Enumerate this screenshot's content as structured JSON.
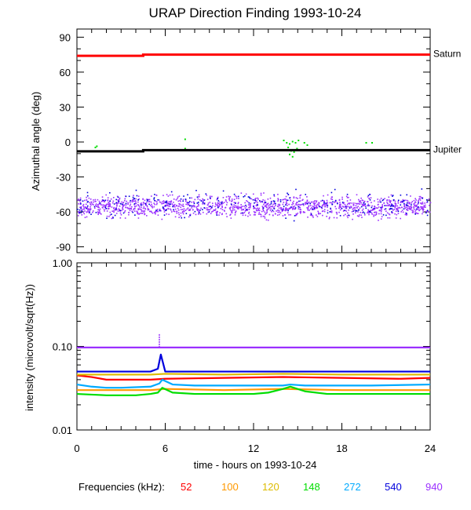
{
  "chart_data": [
    {
      "type": "scatter",
      "title": "URAP Direction Finding  1993-10-24",
      "ylabel": "Azimuthal angle (deg)",
      "xlim": [
        0,
        24
      ],
      "ylim": [
        -95,
        97
      ],
      "yticks": [
        90,
        60,
        30,
        0,
        -30,
        -60,
        -90
      ],
      "ytick_labels": [
        "90",
        "60",
        "30",
        "0",
        "-30",
        "-60",
        "-90"
      ],
      "reference_lines": [
        {
          "name": "Saturn",
          "color": "#ff0000",
          "x": [
            0,
            4.5,
            4.5,
            24
          ],
          "y": [
            74,
            74,
            75,
            75
          ]
        },
        {
          "name": "Jupiter",
          "color": "#000000",
          "x": [
            0,
            4.5,
            4.5,
            24
          ],
          "y": [
            -8,
            -8,
            -7,
            -7
          ]
        }
      ],
      "series": [
        {
          "color": "#9b30ff",
          "x_range": [
            0,
            24
          ],
          "y_center": -55,
          "y_spread": 10
        },
        {
          "color": "#0000dd",
          "x_range": [
            0,
            24
          ],
          "y_center": -53,
          "y_spread": 12
        },
        {
          "color": "#00dd00",
          "x": [
            1.2,
            1.3,
            7.3,
            7.3,
            14.0,
            14.2,
            14.4,
            14.6,
            14.8,
            15.0,
            14.3,
            14.5,
            14.7,
            14.9,
            14.4,
            14.6,
            15.4,
            15.6,
            19.6,
            20.0
          ],
          "y": [
            -4,
            -3,
            3,
            -5,
            2,
            0,
            -1,
            1,
            0,
            2,
            -4,
            -7,
            -8,
            -5,
            -10,
            -12,
            0,
            -2,
            0,
            0
          ]
        }
      ]
    },
    {
      "type": "line",
      "ylabel": "intensity (microvolt/sqrt(Hz))",
      "xlabel": "time - hours on 1993-10-24",
      "xlim": [
        0,
        24
      ],
      "xticks": [
        0,
        6,
        12,
        18,
        24
      ],
      "xtick_labels": [
        "0",
        "6",
        "12",
        "18",
        "24"
      ],
      "ylim": [
        0.01,
        1.0
      ],
      "yscale": "log",
      "yticks": [
        1.0,
        0.1,
        0.01
      ],
      "ytick_labels": [
        "1.00",
        "0.10",
        "0.01"
      ],
      "series": [
        {
          "color": "#ff0000",
          "x": [
            0,
            1,
            2,
            5,
            6,
            10,
            14,
            18,
            22,
            24
          ],
          "y": [
            0.045,
            0.043,
            0.04,
            0.04,
            0.041,
            0.042,
            0.043,
            0.042,
            0.041,
            0.042
          ]
        },
        {
          "color": "#ff9900",
          "x": [
            0,
            2,
            5,
            6,
            10,
            14,
            18,
            22,
            24
          ],
          "y": [
            0.03,
            0.03,
            0.03,
            0.031,
            0.03,
            0.031,
            0.03,
            0.03,
            0.03
          ]
        },
        {
          "color": "#ddbb00",
          "x": [
            0,
            2,
            5,
            6,
            10,
            14,
            18,
            22,
            24
          ],
          "y": [
            0.046,
            0.046,
            0.046,
            0.047,
            0.046,
            0.047,
            0.046,
            0.046,
            0.046
          ]
        },
        {
          "color": "#00dd00",
          "x": [
            0,
            2,
            4,
            5,
            5.5,
            5.8,
            6.5,
            8,
            10,
            12,
            13,
            14,
            14.5,
            15.5,
            17,
            20,
            24
          ],
          "y": [
            0.027,
            0.026,
            0.026,
            0.027,
            0.028,
            0.032,
            0.028,
            0.027,
            0.027,
            0.027,
            0.028,
            0.031,
            0.033,
            0.029,
            0.027,
            0.027,
            0.027
          ]
        },
        {
          "color": "#00aaff",
          "x": [
            0,
            1,
            2,
            3,
            5,
            5.6,
            5.8,
            6.5,
            8,
            10,
            12,
            14,
            14.5,
            15.5,
            17,
            20,
            24
          ],
          "y": [
            0.035,
            0.033,
            0.032,
            0.032,
            0.033,
            0.036,
            0.04,
            0.035,
            0.034,
            0.034,
            0.034,
            0.034,
            0.035,
            0.034,
            0.034,
            0.034,
            0.035
          ]
        },
        {
          "color": "#0000dd",
          "x": [
            0,
            2,
            5,
            5.5,
            5.7,
            6,
            8,
            12,
            16,
            20,
            24
          ],
          "y": [
            0.05,
            0.05,
            0.05,
            0.054,
            0.08,
            0.05,
            0.05,
            0.05,
            0.05,
            0.05,
            0.05
          ]
        },
        {
          "color": "#9b30ff",
          "x": [
            0,
            4,
            8,
            12,
            16,
            20,
            24
          ],
          "y": [
            0.097,
            0.097,
            0.097,
            0.097,
            0.097,
            0.097,
            0.097
          ]
        }
      ],
      "spike": {
        "color": "#9b30ff",
        "x": 5.6,
        "y": 0.14
      }
    }
  ],
  "legend": {
    "label": "Frequencies (kHz):",
    "items": [
      {
        "text": "52",
        "color": "#ff0000"
      },
      {
        "text": "100",
        "color": "#ff9900"
      },
      {
        "text": "120",
        "color": "#ddbb00"
      },
      {
        "text": "148",
        "color": "#00dd00"
      },
      {
        "text": "272",
        "color": "#00aaff"
      },
      {
        "text": "540",
        "color": "#0000dd"
      },
      {
        "text": "940",
        "color": "#9b30ff"
      }
    ]
  }
}
